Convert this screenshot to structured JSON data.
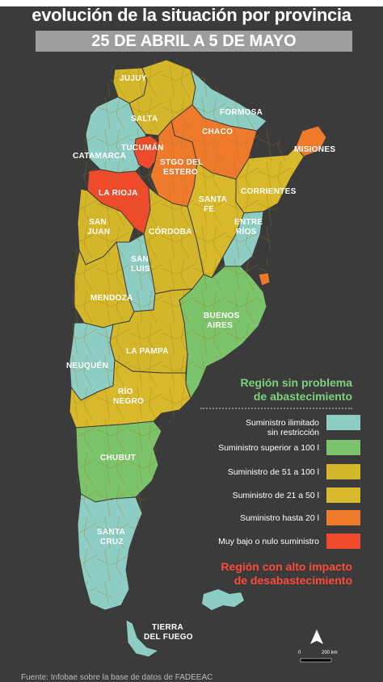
{
  "title": "evolución de la situación por provincia",
  "date_range": "25 DE ABRIL A 5 DE MAYO",
  "colors": {
    "teal": "#8ecdc4",
    "green": "#7cc46c",
    "yellow_dark": "#d4b62a",
    "yellow": "#d9b92c",
    "orange": "#f07a2c",
    "red": "#f04a2c"
  },
  "provinces": {
    "jujuy": "JUJUY",
    "salta": "SALTA",
    "formosa": "FORMOSA",
    "chaco": "CHACO",
    "tucuman": "TUCUMÁN",
    "catamarca": "CATAMARCA",
    "stgo_1": "STGO DEL",
    "stgo_2": "ESTERO",
    "misiones": "MISIONES",
    "corrientes": "CORRIENTES",
    "la_rioja": "LA RIOJA",
    "santa_fe_1": "SANTA",
    "santa_fe_2": "FE",
    "entre_rios_1": "ENTRE",
    "entre_rios_2": "RÍOS",
    "san_juan_1": "SAN",
    "san_juan_2": "JUAN",
    "cordoba": "CÓRDOBA",
    "san_luis_1": "SAN",
    "san_luis_2": "LUIS",
    "mendoza": "MENDOZA",
    "buenos_aires_1": "BUENOS",
    "buenos_aires_2": "AIRES",
    "la_pampa": "LA PAMPA",
    "neuquen": "NEUQUÉN",
    "rio_negro_1": "RÍO",
    "rio_negro_2": "NEGRO",
    "chubut": "CHUBUT",
    "santa_cruz_1": "SANTA",
    "santa_cruz_2": "CRUZ",
    "tdf_1": "TIERRA",
    "tdf_2": "DEL FUEGO"
  },
  "legend": {
    "title_ok": [
      "Región sin problema",
      "de abastecimiento"
    ],
    "title_bad": [
      "Región con alto impacto",
      "de desabastecimiento"
    ],
    "items": [
      {
        "label1": "Suministro ilimitado",
        "label2": "sin restricción",
        "color": "#8ecdc4"
      },
      {
        "label1": "Suministro superior a 100 l",
        "label2": "",
        "color": "#7cc46c"
      },
      {
        "label1": "Suministro de 51 a 100 l",
        "label2": "",
        "color": "#d4b62a"
      },
      {
        "label1": "Suministro de 21 a 50 l",
        "label2": "",
        "color": "#d9b92c"
      },
      {
        "label1": "Suministro hasta 20 l",
        "label2": "",
        "color": "#f07a2c"
      },
      {
        "label1": "Muy bajo o nulo suministro",
        "label2": "",
        "color": "#f04a2c"
      }
    ]
  },
  "scale": {
    "zero": "0",
    "dist": "200 km"
  },
  "source": "Fuente: Infobae sobre la base de datos de FADEEAC"
}
